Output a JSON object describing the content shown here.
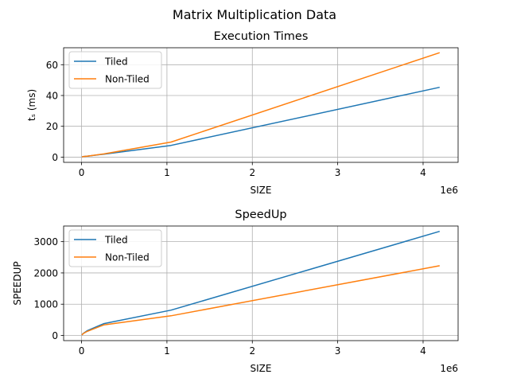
{
  "suptitle": "Matrix Multiplication Data",
  "colors": {
    "tiled": "#1f77b4",
    "non_tiled": "#ff7f0e",
    "grid": "#b0b0b0"
  },
  "chart_data": [
    {
      "type": "line",
      "title": "Execution Times",
      "xlabel": "SIZE",
      "ylabel": "tₛ (ms)",
      "offset_text": "1e6",
      "xlim": [
        -210000,
        4410000
      ],
      "ylim": [
        -3.4,
        71
      ],
      "xticks": [
        0,
        1000000,
        2000000,
        3000000,
        4000000
      ],
      "xtick_labels": [
        "0",
        "1",
        "2",
        "3",
        "4"
      ],
      "yticks": [
        0,
        20,
        40,
        60
      ],
      "ytick_labels": [
        "0",
        "20",
        "40",
        "60"
      ],
      "legend": "top-left",
      "grid": true,
      "x": [
        4096,
        16384,
        65536,
        262144,
        1048576,
        4194304
      ],
      "series": [
        {
          "name": "Tiled",
          "color": "#1f77b4",
          "values": [
            0.1,
            0.3,
            0.6,
            1.9,
            7.6,
            45.3
          ]
        },
        {
          "name": "Non-Tiled",
          "color": "#ff7f0e",
          "values": [
            0.1,
            0.3,
            0.6,
            2.1,
            9.8,
            67.8
          ]
        }
      ]
    },
    {
      "type": "line",
      "title": "SpeedUp",
      "xlabel": "SIZE",
      "ylabel": "SPEEDUP",
      "offset_text": "1e6",
      "xlim": [
        -210000,
        4410000
      ],
      "ylim": [
        -165,
        3500
      ],
      "xticks": [
        0,
        1000000,
        2000000,
        3000000,
        4000000
      ],
      "xtick_labels": [
        "0",
        "1",
        "2",
        "3",
        "4"
      ],
      "yticks": [
        0,
        1000,
        2000,
        3000
      ],
      "ytick_labels": [
        "0",
        "1000",
        "2000",
        "3000"
      ],
      "legend": "top-left",
      "grid": true,
      "x": [
        4096,
        16384,
        65536,
        262144,
        1048576,
        4194304
      ],
      "series": [
        {
          "name": "Tiled",
          "color": "#1f77b4",
          "values": [
            10,
            60,
            150,
            380,
            810,
            3330
          ]
        },
        {
          "name": "Non-Tiled",
          "color": "#ff7f0e",
          "values": [
            10,
            55,
            130,
            340,
            630,
            2230
          ]
        }
      ]
    }
  ]
}
